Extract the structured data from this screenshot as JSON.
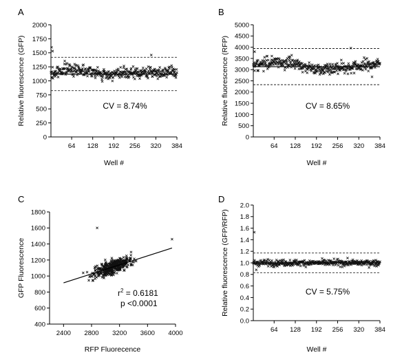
{
  "chart_data": [
    {
      "panel": "A",
      "type": "scatter",
      "ylabel": "Relative fluorescence (GFP)",
      "xlabel": "Well #",
      "ylim": [
        0,
        2000
      ],
      "xlim": [
        1,
        384
      ],
      "yticks": [
        "0",
        "250",
        "500",
        "750",
        "1000",
        "1250",
        "1500",
        "1750",
        "2000"
      ],
      "xticks": [
        "64",
        "128",
        "192",
        "256",
        "320",
        "384"
      ],
      "mean": 1120,
      "upper_line": 1420,
      "lower_line": 825,
      "cv_label": "CV = 8.74%",
      "n_points": 384,
      "trend": [
        [
          1,
          1110
        ],
        [
          40,
          1210
        ],
        [
          100,
          1200
        ],
        [
          160,
          1110
        ],
        [
          220,
          1130
        ],
        [
          300,
          1150
        ],
        [
          384,
          1160
        ]
      ],
      "spread": 85,
      "outliers": [
        [
          3,
          1600
        ],
        [
          6,
          1530
        ],
        [
          306,
          1460
        ]
      ]
    },
    {
      "panel": "B",
      "type": "scatter",
      "ylabel": "Relative fluorescence (RFP)",
      "xlabel": "Well #",
      "ylim": [
        0,
        5000
      ],
      "xlim": [
        1,
        384
      ],
      "yticks": [
        "0",
        "500",
        "1000",
        "1500",
        "2000",
        "2500",
        "3000",
        "3500",
        "4000",
        "4500",
        "5000"
      ],
      "xticks": [
        "64",
        "128",
        "192",
        "256",
        "320",
        "384"
      ],
      "mean": 3130,
      "upper_line": 3940,
      "lower_line": 2330,
      "cv_label": "CV = 8.65%",
      "n_points": 384,
      "trend": [
        [
          1,
          3200
        ],
        [
          60,
          3340
        ],
        [
          120,
          3300
        ],
        [
          180,
          3050
        ],
        [
          240,
          3050
        ],
        [
          300,
          3120
        ],
        [
          384,
          3280
        ]
      ],
      "spread": 220,
      "outliers": [
        [
          5,
          3800
        ],
        [
          296,
          3960
        ],
        [
          360,
          2680
        ]
      ]
    },
    {
      "panel": "C",
      "type": "scatter",
      "ylabel": "GFP Fluorescence",
      "xlabel": "RFP Fluorecence",
      "ylim": [
        400,
        1800
      ],
      "xlim": [
        2200,
        4000
      ],
      "yticks": [
        "400",
        "600",
        "800",
        "1000",
        "1200",
        "1400",
        "1600",
        "1800"
      ],
      "xticks": [
        "2400",
        "2800",
        "3200",
        "3600",
        "4000"
      ],
      "fit_line": [
        [
          2400,
          915
        ],
        [
          3950,
          1350
        ]
      ],
      "r2_label": "r",
      "r2_sup": "2",
      "r2_value": " = 0.6181",
      "p_label": "p <0.0001",
      "n_points": 384,
      "outliers": [
        [
          2880,
          1600
        ],
        [
          3950,
          1460
        ]
      ]
    },
    {
      "panel": "D",
      "type": "scatter",
      "ylabel": "Relative fluorescence (GFP/RFP)",
      "xlabel": "Well #",
      "ylim": [
        0,
        2.0
      ],
      "xlim": [
        1,
        384
      ],
      "yticks": [
        "0.0",
        "0.2",
        "0.4",
        "0.6",
        "0.8",
        "1.0",
        "1.2",
        "1.4",
        "1.6",
        "1.8",
        "2.0"
      ],
      "xticks": [
        "64",
        "128",
        "192",
        "256",
        "320",
        "384"
      ],
      "mean": 1.0,
      "upper_line": 1.17,
      "lower_line": 0.83,
      "cv_label": "CV = 5.75%",
      "n_points": 384,
      "trend": [
        [
          1,
          1.0
        ],
        [
          384,
          1.0
        ]
      ],
      "spread": 0.045,
      "outliers": [
        [
          4,
          1.53
        ],
        [
          10,
          0.88
        ]
      ]
    }
  ]
}
